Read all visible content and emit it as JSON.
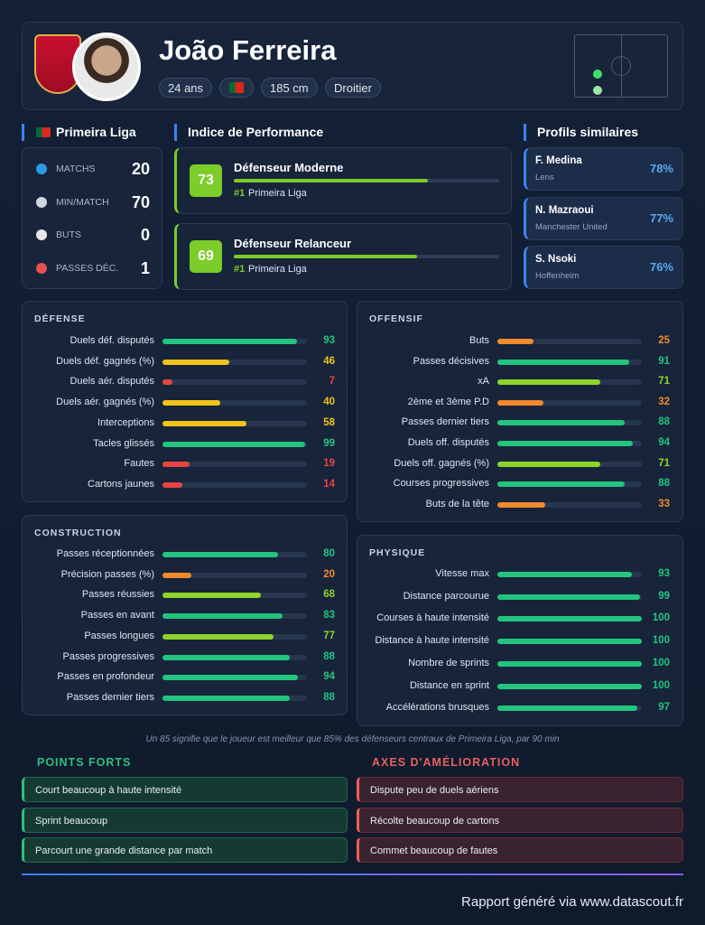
{
  "player": {
    "name": "João Ferreira",
    "tags": [
      "24 ans",
      "185 cm",
      "Droitier"
    ]
  },
  "league": {
    "title": "Primeira Liga",
    "stats": [
      {
        "label": "MATCHS",
        "value": 20
      },
      {
        "label": "MIN/MATCH",
        "value": 70
      },
      {
        "label": "BUTS",
        "value": 0
      },
      {
        "label": "PASSES DÉC.",
        "value": 1
      }
    ]
  },
  "performance": {
    "title": "Indice de Performance",
    "items": [
      {
        "score": 73,
        "name": "Défenseur Moderne",
        "rank": "#1",
        "league": "Primeira Liga"
      },
      {
        "score": 69,
        "name": "Défenseur Relanceur",
        "rank": "#1",
        "league": "Primeira Liga"
      }
    ]
  },
  "similar": {
    "title": "Profils similaires",
    "items": [
      {
        "name": "F. Medina",
        "club": "Lens",
        "match": "78%"
      },
      {
        "name": "N. Mazraoui",
        "club": "Manchester United",
        "match": "77%"
      },
      {
        "name": "S. Nsoki",
        "club": "Hoffenheim",
        "match": "76%"
      }
    ]
  },
  "xlim": [
    0,
    100
  ],
  "sections": [
    {
      "title": "DÉFENSE",
      "stats": [
        {
          "label": "Duels déf. disputés",
          "value": 93
        },
        {
          "label": "Duels déf. gagnés (%)",
          "value": 46
        },
        {
          "label": "Duels aér. disputés",
          "value": 7
        },
        {
          "label": "Duels aér. gagnés (%)",
          "value": 40
        },
        {
          "label": "Interceptions",
          "value": 58
        },
        {
          "label": "Tacles glissés",
          "value": 99
        },
        {
          "label": "Fautes",
          "value": 19
        },
        {
          "label": "Cartons jaunes",
          "value": 14
        }
      ]
    },
    {
      "title": "OFFENSIF",
      "stats": [
        {
          "label": "Buts",
          "value": 25
        },
        {
          "label": "Passes décisives",
          "value": 91
        },
        {
          "label": "xA",
          "value": 71
        },
        {
          "label": "2ème et 3ème P.D",
          "value": 32
        },
        {
          "label": "Passes dernier tiers",
          "value": 88
        },
        {
          "label": "Duels off. disputés",
          "value": 94
        },
        {
          "label": "Duels off. gagnés (%)",
          "value": 71
        },
        {
          "label": "Courses progressives",
          "value": 88
        },
        {
          "label": "Buts de la tête",
          "value": 33
        }
      ]
    },
    {
      "title": "CONSTRUCTION",
      "stats": [
        {
          "label": "Passes réceptionnées",
          "value": 80
        },
        {
          "label": "Précision passes (%)",
          "value": 20
        },
        {
          "label": "Passes réussies",
          "value": 68
        },
        {
          "label": "Passes en avant",
          "value": 83
        },
        {
          "label": "Passes longues",
          "value": 77
        },
        {
          "label": "Passes progressives",
          "value": 88
        },
        {
          "label": "Passes en profondeur",
          "value": 94
        },
        {
          "label": "Passes dernier tiers",
          "value": 88
        }
      ]
    },
    {
      "title": "PHYSIQUE",
      "stats": [
        {
          "label": "Vitesse max",
          "value": 93
        },
        {
          "label": "Distance parcourue",
          "value": 99
        },
        {
          "label": "Courses à haute intensité",
          "value": 100
        },
        {
          "label": "Distance à haute intensité",
          "value": 100
        },
        {
          "label": "Nombre de sprints",
          "value": 100
        },
        {
          "label": "Distance en sprint",
          "value": 100
        },
        {
          "label": "Accélérations brusques",
          "value": 97
        }
      ]
    }
  ],
  "footnote": "Un 85 signifie que le joueur est meilleur que 85% des défenseurs centraux de Primeira Liga, par 90 min",
  "strengths": {
    "title": "POINTS FORTS",
    "items": [
      "Court beaucoup à haute intensité",
      "Sprint beaucoup",
      "Parcourt une grande distance par match"
    ]
  },
  "weaknesses": {
    "title": "AXES D'AMÉLIORATION",
    "items": [
      "Dispute peu de duels aériens",
      "Récolte beaucoup de cartons",
      "Commet beaucoup de fautes"
    ]
  },
  "footer": "Rapport généré via www.datascout.fr"
}
